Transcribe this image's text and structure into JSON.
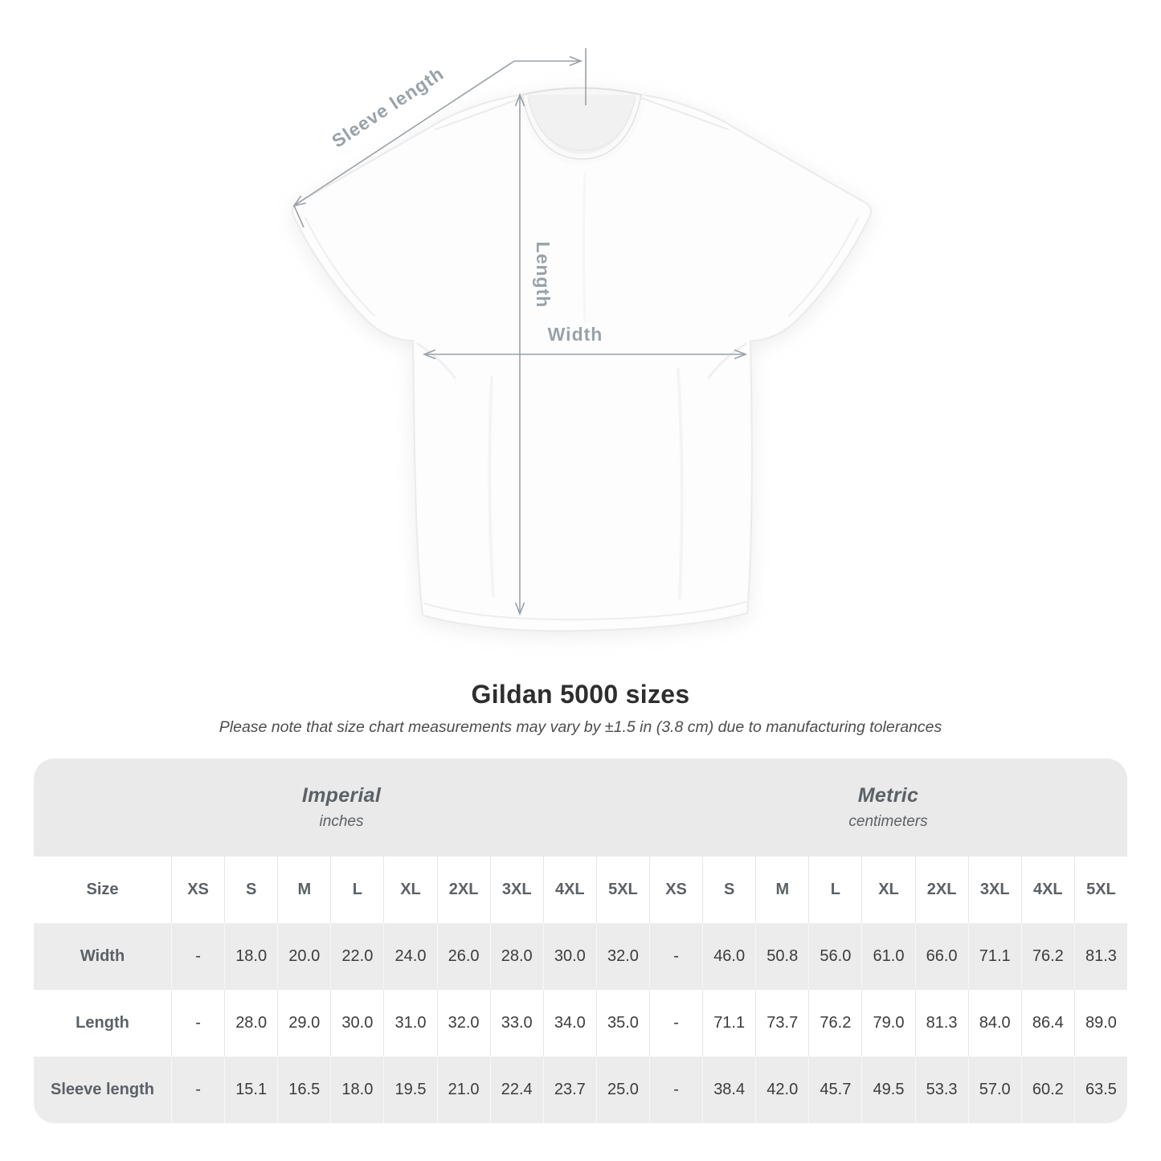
{
  "diagram": {
    "labels": {
      "sleeve_length": "Sleeve length",
      "length": "Length",
      "width": "Width"
    }
  },
  "title": "Gildan 5000 sizes",
  "subtitle": "Please note that size chart measurements may vary by ±1.5 in (3.8 cm) due to manufacturing tolerances",
  "table": {
    "size_label": "Size",
    "unit_groups": [
      {
        "name": "Imperial",
        "unit": "inches"
      },
      {
        "name": "Metric",
        "unit": "centimeters"
      }
    ],
    "sizes": [
      "XS",
      "S",
      "M",
      "L",
      "XL",
      "2XL",
      "3XL",
      "4XL",
      "5XL"
    ],
    "rows": [
      {
        "label": "Width",
        "imperial": [
          "-",
          "18.0",
          "20.0",
          "22.0",
          "24.0",
          "26.0",
          "28.0",
          "30.0",
          "32.0"
        ],
        "metric": [
          "-",
          "46.0",
          "50.8",
          "56.0",
          "61.0",
          "66.0",
          "71.1",
          "76.2",
          "81.3"
        ]
      },
      {
        "label": "Length",
        "imperial": [
          "-",
          "28.0",
          "29.0",
          "30.0",
          "31.0",
          "32.0",
          "33.0",
          "34.0",
          "35.0"
        ],
        "metric": [
          "-",
          "71.1",
          "73.7",
          "76.2",
          "79.0",
          "81.3",
          "84.0",
          "86.4",
          "89.0"
        ]
      },
      {
        "label": "Sleeve length",
        "imperial": [
          "-",
          "15.1",
          "16.5",
          "18.0",
          "19.5",
          "21.0",
          "22.4",
          "23.7",
          "25.0"
        ],
        "metric": [
          "-",
          "38.4",
          "42.0",
          "45.7",
          "49.5",
          "53.3",
          "57.0",
          "60.2",
          "63.5"
        ]
      }
    ]
  },
  "colors": {
    "header_band": "#eaeaea",
    "row_shade": "#ececec",
    "annotation_gray": "#9aa2a8",
    "label_text": "#5b6166",
    "value_text": "#3c3c3c"
  }
}
